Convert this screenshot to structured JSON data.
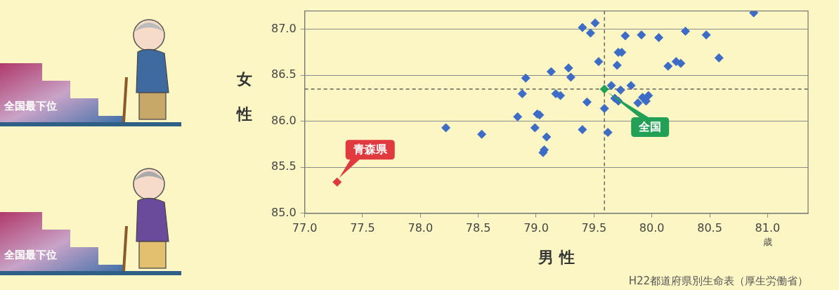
{
  "chart_data": {
    "type": "scatter",
    "x_label": "男 性",
    "y_label": "女 性",
    "x_unit": "歳",
    "source": "H22都道府県別生命表（厚生労働省）",
    "illustration_labels": [
      "全国最下位",
      "全国最下位"
    ],
    "xlim": [
      77.0,
      81.35
    ],
    "ylim": [
      85.0,
      87.2
    ],
    "xticks": [
      {
        "value": 77,
        "label": "77.0"
      },
      {
        "value": 77.5,
        "label": "77.5"
      },
      {
        "value": 78,
        "label": "78.0"
      },
      {
        "value": 78.5,
        "label": "78.5"
      },
      {
        "value": 79,
        "label": "79.0"
      },
      {
        "value": 79.5,
        "label": "79.5"
      },
      {
        "value": 80,
        "label": "80.0"
      },
      {
        "value": 80.5,
        "label": "80.5"
      },
      {
        "value": 81,
        "label": "81.0"
      }
    ],
    "yticks": [
      {
        "value": 85,
        "label": "85.0"
      },
      {
        "value": 85.5,
        "label": "85.5"
      },
      {
        "value": 86,
        "label": "86.0"
      },
      {
        "value": 86.5,
        "label": "86.5"
      },
      {
        "value": 87,
        "label": "87.0"
      }
    ],
    "grid": "y",
    "legend": false,
    "marker": "diamond",
    "series": [
      {
        "color": "#3d6cc6",
        "x": [
          79.17,
          78.53,
          79.65,
          78.22,
          79.97,
          78.84,
          79.09,
          79.06,
          79.4,
          79.62,
          79.88,
          79.82,
          80.25,
          79.47,
          79.71,
          79.74,
          80.47,
          79.54,
          80.88,
          79.92,
          79.95,
          79.71,
          79.68,
          80.58,
          80.21,
          78.99,
          79.59,
          80.14,
          79.07,
          79.01,
          79.51,
          79.77,
          79.91,
          79.03,
          79.44,
          79.73,
          79.13,
          78.91,
          79.3,
          79.28,
          78.88,
          80.29,
          80.06,
          79.7,
          79.21,
          79.4
        ],
        "y": [
          86.3,
          85.86,
          86.39,
          85.93,
          86.28,
          86.05,
          85.83,
          85.66,
          85.91,
          85.88,
          86.2,
          86.39,
          86.63,
          86.96,
          86.75,
          86.75,
          86.94,
          86.65,
          87.18,
          86.26,
          86.22,
          86.22,
          86.25,
          86.69,
          86.65,
          85.93,
          86.14,
          86.6,
          85.69,
          86.08,
          87.07,
          86.93,
          86.94,
          86.07,
          86.21,
          86.34,
          86.54,
          86.47,
          86.48,
          86.58,
          86.3,
          86.98,
          86.91,
          86.61,
          86.28,
          87.02
        ]
      },
      {
        "name": "青森県",
        "color": "#e0393e",
        "x": [
          77.28
        ],
        "y": [
          85.34
        ]
      },
      {
        "name": "全国",
        "color": "#22a055",
        "x": [
          79.59
        ],
        "y": [
          86.35
        ],
        "line_style": "dashed"
      }
    ]
  }
}
